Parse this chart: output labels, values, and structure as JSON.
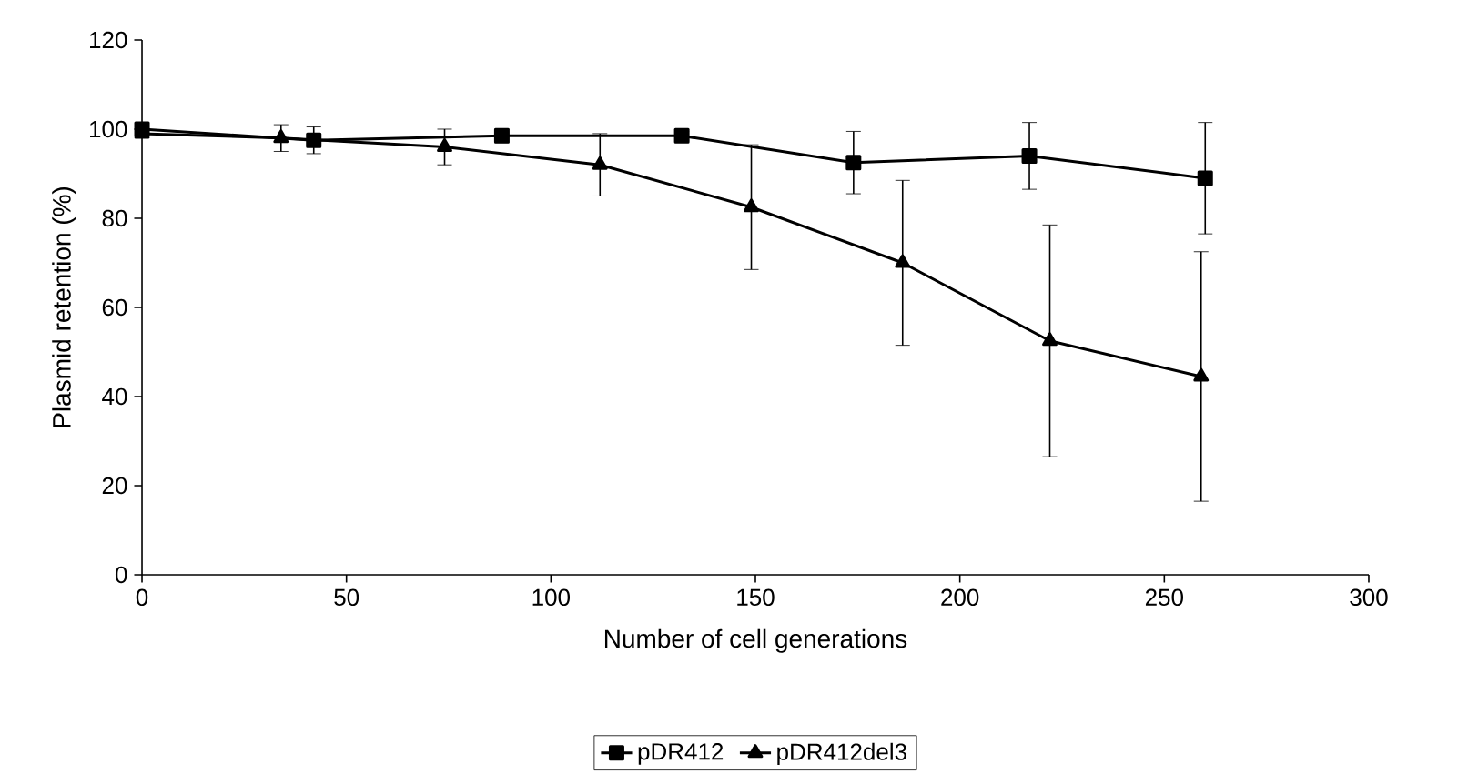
{
  "chart_data": {
    "type": "line",
    "xlabel": "Number of cell generations",
    "ylabel": "Plasmid retention (%)",
    "xlim": [
      0,
      300
    ],
    "ylim": [
      0,
      120
    ],
    "xticks": [
      0,
      50,
      100,
      150,
      200,
      250,
      300
    ],
    "yticks": [
      0,
      20,
      40,
      60,
      80,
      100,
      120
    ],
    "legend": "bottom",
    "grid": false,
    "series": [
      {
        "name": "pDR412",
        "color": "#000000",
        "marker": "square",
        "x": [
          0,
          42,
          88,
          132,
          174,
          217,
          260
        ],
        "values": [
          100,
          97.5,
          98.5,
          98.5,
          92.5,
          94,
          89
        ],
        "errors": [
          null,
          3,
          1.5,
          1,
          7,
          7.5,
          12.5
        ]
      },
      {
        "name": "pDR412del3",
        "color": "#000000",
        "marker": "triangle",
        "x": [
          0,
          34,
          74,
          112,
          149,
          186,
          222,
          259
        ],
        "values": [
          99,
          98,
          96,
          92,
          82.5,
          70,
          52.5,
          44.5
        ],
        "errors": [
          null,
          3,
          4,
          7,
          14,
          18.5,
          26,
          28
        ]
      }
    ]
  }
}
